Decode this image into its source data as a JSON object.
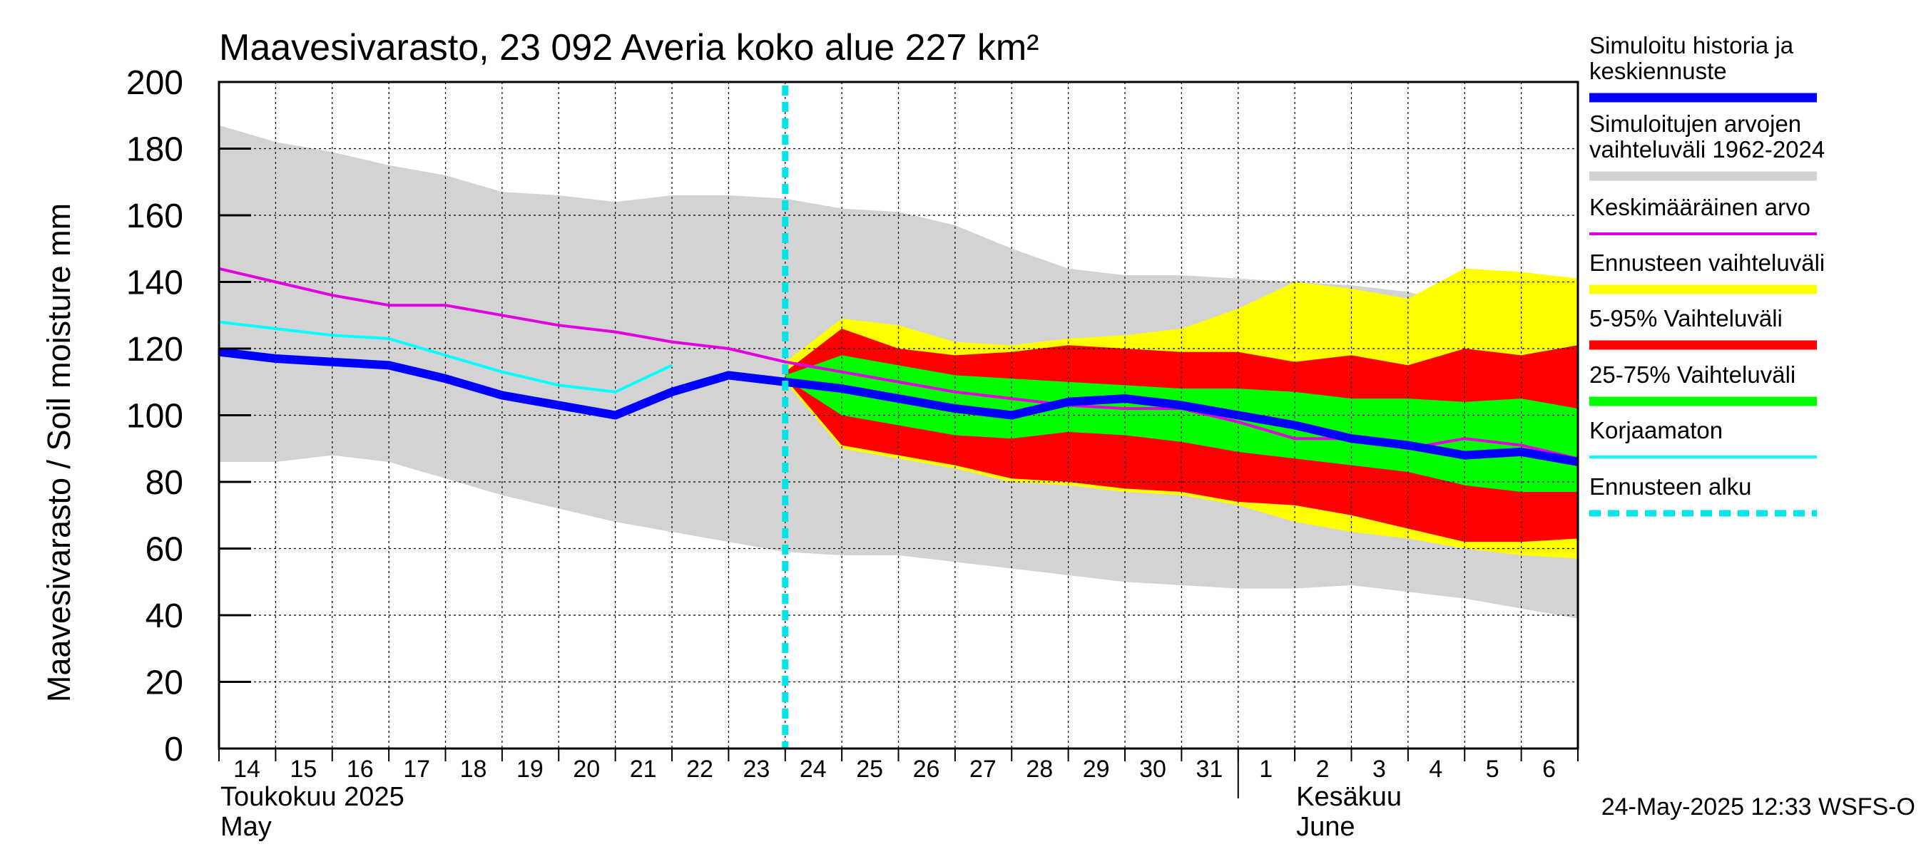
{
  "chart_data": {
    "type": "area",
    "title": "Maavesivarasto, 23 092 Averia koko alue 227 km²",
    "ylabel": "Maavesivarasto / Soil moisture   mm",
    "ylim": [
      0,
      200
    ],
    "yticks": [
      0,
      20,
      40,
      60,
      80,
      100,
      120,
      140,
      160,
      180,
      200
    ],
    "xlim": [
      0,
      24
    ],
    "day_labels": [
      "14",
      "15",
      "16",
      "17",
      "18",
      "19",
      "20",
      "21",
      "22",
      "23",
      "24",
      "25",
      "26",
      "27",
      "28",
      "29",
      "30",
      "31",
      "1",
      "2",
      "3",
      "4",
      "5",
      "6"
    ],
    "month_labels": [
      {
        "line1": "Toukokuu  2025",
        "line2": "May",
        "day_index": 0
      },
      {
        "line1": "Kesäkuu",
        "line2": "June",
        "day_index": 19
      }
    ],
    "month_separator_day": 18,
    "forecast_start": 10,
    "timestamp": "24-May-2025 12:33 WSFS-O",
    "colors": {
      "history_range": "#d3d3d3",
      "forecast_range": "#ffff00",
      "p5_95": "#ff0000",
      "p25_75": "#00ff00",
      "simulated": "#0000ff",
      "mean": "#e000e0",
      "uncorrected": "#00ffff",
      "forecast_start": "#00e5e5",
      "grid": "#000000"
    },
    "legend": [
      {
        "label": "Simuloitu historia ja keskiennuste",
        "lines": [
          "Simuloitu historia ja",
          "keskiennuste"
        ],
        "color": "#0000ff",
        "style": "thick"
      },
      {
        "label": "Simuloitujen arvojen vaihteluväli 1962-2024",
        "lines": [
          "Simuloitujen arvojen",
          "vaihteluväli 1962-2024"
        ],
        "color": "#d3d3d3",
        "style": "band"
      },
      {
        "label": "Keskimääräinen arvo",
        "lines": [
          "Keskimääräinen arvo"
        ],
        "color": "#e000e0",
        "style": "thin"
      },
      {
        "label": "Ennusteen vaihteluväli",
        "lines": [
          "Ennusteen vaihteluväli"
        ],
        "color": "#ffff00",
        "style": "band"
      },
      {
        "label": "5-95% Vaihteluväli",
        "lines": [
          "5-95% Vaihteluväli"
        ],
        "color": "#ff0000",
        "style": "band"
      },
      {
        "label": "25-75% Vaihteluväli",
        "lines": [
          "25-75% Vaihteluväli"
        ],
        "color": "#00ff00",
        "style": "band"
      },
      {
        "label": "Korjaamaton",
        "lines": [
          "Korjaamaton"
        ],
        "color": "#00ffff",
        "style": "thin"
      },
      {
        "label": "Ennusteen alku",
        "lines": [
          "Ennusteen alku"
        ],
        "color": "#00e5e5",
        "style": "dashed"
      }
    ],
    "series": {
      "history_range": {
        "x": [
          0,
          1,
          2,
          3,
          4,
          5,
          6,
          7,
          8,
          9,
          10,
          11,
          12,
          13,
          14,
          15,
          16,
          17,
          18,
          19,
          20,
          21,
          22,
          23,
          24
        ],
        "upper": [
          187,
          182,
          179,
          175,
          172,
          167,
          166,
          164,
          166,
          166,
          165,
          162,
          161,
          157,
          150,
          144,
          142,
          142,
          141,
          140,
          139,
          137,
          133,
          129,
          126
        ],
        "lower": [
          86,
          86,
          88,
          86,
          81,
          76,
          72,
          68,
          65,
          62,
          59,
          58,
          58,
          56,
          54,
          52,
          50,
          49,
          48,
          48,
          49,
          47,
          45,
          42,
          39
        ]
      },
      "forecast_range": {
        "x": [
          10,
          11,
          12,
          13,
          14,
          15,
          16,
          17,
          18,
          19,
          20,
          21,
          22,
          23,
          24
        ],
        "upper": [
          116,
          129,
          127,
          122,
          121,
          123,
          124,
          126,
          132,
          140,
          138,
          135,
          144,
          143,
          141
        ],
        "lower": [
          110,
          90,
          87,
          84,
          80,
          79,
          77,
          76,
          73,
          68,
          65,
          63,
          60,
          58,
          57
        ]
      },
      "p5_95": {
        "x": [
          10,
          11,
          12,
          13,
          14,
          15,
          16,
          17,
          18,
          19,
          20,
          21,
          22,
          23,
          24
        ],
        "upper": [
          113,
          126,
          120,
          118,
          119,
          121,
          120,
          119,
          119,
          116,
          118,
          115,
          120,
          118,
          121
        ],
        "lower": [
          111,
          91,
          88,
          85,
          81,
          80,
          78,
          77,
          74,
          73,
          70,
          66,
          62,
          62,
          63
        ]
      },
      "p25_75": {
        "x": [
          10,
          11,
          12,
          13,
          14,
          15,
          16,
          17,
          18,
          19,
          20,
          21,
          22,
          23,
          24
        ],
        "upper": [
          112,
          118,
          115,
          112,
          111,
          110,
          109,
          108,
          108,
          107,
          105,
          105,
          104,
          105,
          102
        ],
        "lower": [
          111,
          100,
          97,
          94,
          93,
          95,
          94,
          92,
          89,
          87,
          85,
          83,
          79,
          77,
          77
        ]
      },
      "simulated": {
        "x": [
          0,
          1,
          2,
          3,
          4,
          5,
          6,
          7,
          8,
          9,
          10,
          11,
          12,
          13,
          14,
          15,
          16,
          17,
          18,
          19,
          20,
          21,
          22,
          23,
          24
        ],
        "values": [
          119,
          117,
          116,
          115,
          111,
          106,
          103,
          100,
          107,
          112,
          110,
          108,
          105,
          102,
          100,
          104,
          105,
          103,
          100,
          97,
          93,
          91,
          88,
          89,
          86
        ]
      },
      "mean": {
        "x": [
          0,
          1,
          2,
          3,
          4,
          5,
          6,
          7,
          8,
          9,
          10,
          11,
          12,
          13,
          14,
          15,
          16,
          17,
          18,
          19,
          20,
          21,
          22,
          23,
          24
        ],
        "values": [
          144,
          140,
          136,
          133,
          133,
          130,
          127,
          125,
          122,
          120,
          116,
          113,
          110,
          107,
          105,
          103,
          102,
          102,
          98,
          93,
          93,
          90,
          93,
          91,
          87
        ]
      },
      "uncorrected": {
        "x": [
          0,
          1,
          2,
          3,
          4,
          5,
          6,
          7,
          8
        ],
        "values": [
          128,
          126,
          124,
          123,
          118,
          113,
          109,
          107,
          115
        ]
      }
    }
  }
}
